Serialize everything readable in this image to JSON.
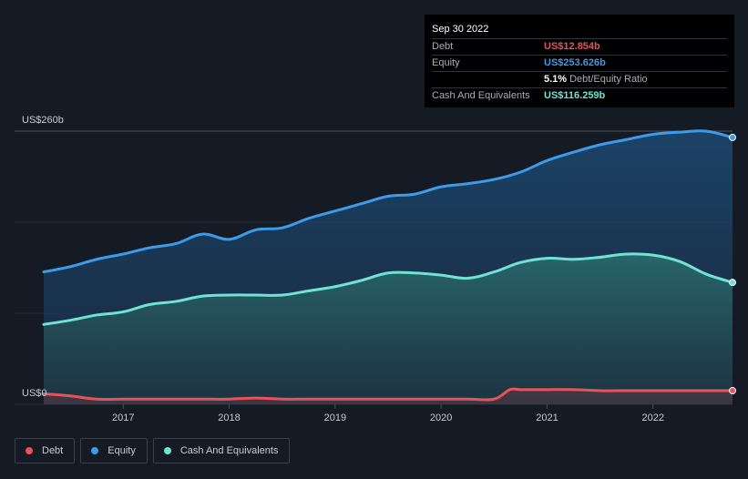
{
  "tooltip": {
    "date": "Sep 30 2022",
    "rows": [
      {
        "label": "Debt",
        "value": "US$12.854b",
        "color": "#e8525b"
      },
      {
        "label": "Equity",
        "value": "US$253.626b",
        "color": "#3d9be9"
      },
      {
        "label": "",
        "value": "5.1%",
        "suffix": "Debt/Equity Ratio"
      },
      {
        "label": "Cash And Equivalents",
        "value": "US$116.259b",
        "color": "#6fe3d4"
      }
    ]
  },
  "legend": [
    {
      "label": "Debt",
      "color": "#e8525b"
    },
    {
      "label": "Equity",
      "color": "#3d9be9"
    },
    {
      "label": "Cash And Equivalents",
      "color": "#6fe3d4"
    }
  ],
  "chart_data": {
    "type": "area",
    "ylim": [
      0,
      260
    ],
    "y_tick_labels": {
      "top": "US$260b",
      "bottom": "US$0"
    },
    "x_tick_labels": [
      "2017",
      "2018",
      "2019",
      "2020",
      "2021",
      "2022"
    ],
    "x_ticks": [
      2017,
      2018,
      2019,
      2020,
      2021,
      2022
    ],
    "xlim": [
      2016.25,
      2022.75
    ],
    "grid": true,
    "legend_position": "bottom-left",
    "series": [
      {
        "name": "Equity",
        "color": "#3d9be9",
        "x": [
          2016.25,
          2016.5,
          2016.75,
          2017.0,
          2017.25,
          2017.5,
          2017.75,
          2018.0,
          2018.25,
          2018.5,
          2018.75,
          2019.0,
          2019.25,
          2019.5,
          2019.75,
          2020.0,
          2020.25,
          2020.5,
          2020.75,
          2021.0,
          2021.25,
          2021.5,
          2021.75,
          2022.0,
          2022.25,
          2022.5,
          2022.75
        ],
        "values": [
          126,
          131,
          138,
          143,
          149,
          153,
          162,
          157,
          166,
          168,
          177,
          184,
          191,
          198,
          200,
          207,
          210,
          214,
          221,
          232,
          240,
          247,
          252,
          257,
          259,
          260,
          254
        ]
      },
      {
        "name": "Cash And Equivalents",
        "color": "#6fe3d4",
        "x": [
          2016.25,
          2016.5,
          2016.75,
          2017.0,
          2017.25,
          2017.5,
          2017.75,
          2018.0,
          2018.25,
          2018.5,
          2018.75,
          2019.0,
          2019.25,
          2019.5,
          2019.75,
          2020.0,
          2020.25,
          2020.5,
          2020.75,
          2021.0,
          2021.25,
          2021.5,
          2021.75,
          2022.0,
          2022.25,
          2022.5,
          2022.75
        ],
        "values": [
          76,
          80,
          85,
          88,
          95,
          98,
          103,
          104,
          104,
          104,
          108,
          112,
          118,
          125,
          125,
          123,
          120,
          126,
          135,
          139,
          138,
          140,
          143,
          142,
          136,
          124,
          116
        ]
      },
      {
        "name": "Debt",
        "color": "#e8525b",
        "x": [
          2016.25,
          2016.5,
          2016.75,
          2017.0,
          2017.25,
          2017.5,
          2017.75,
          2018.0,
          2018.25,
          2018.5,
          2018.75,
          2019.0,
          2019.25,
          2019.5,
          2019.75,
          2020.0,
          2020.25,
          2020.5,
          2020.65,
          2020.75,
          2021.0,
          2021.25,
          2021.5,
          2021.75,
          2022.0,
          2022.25,
          2022.5,
          2022.75
        ],
        "values": [
          10,
          8,
          5,
          5,
          5,
          5,
          5,
          5,
          6,
          5,
          5,
          5,
          5,
          5,
          5,
          5,
          5,
          5,
          14,
          14,
          14,
          14,
          13,
          13,
          13,
          13,
          13,
          13
        ]
      }
    ]
  }
}
